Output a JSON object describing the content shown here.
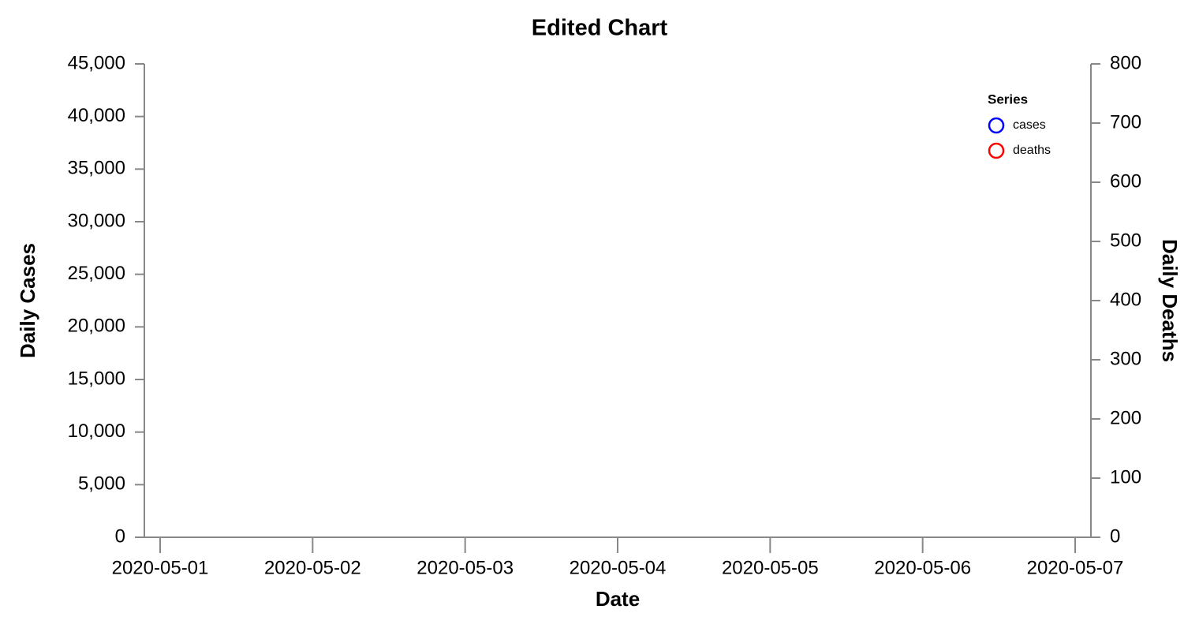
{
  "chart_data": {
    "type": "line",
    "title": "Edited Chart",
    "x": [
      "2020-05-01",
      "2020-05-02",
      "2020-05-03",
      "2020-05-04",
      "2020-05-05",
      "2020-05-06",
      "2020-05-07"
    ],
    "xlabel": "Date",
    "ylabel": "Daily Cases",
    "y2label": "Daily Deaths",
    "series": [
      {
        "name": "cases",
        "color": "blue",
        "values": [
          null,
          null,
          null,
          null,
          null,
          null,
          null
        ]
      },
      {
        "name": "deaths",
        "color": "red",
        "axis": "y2",
        "values": [
          null,
          null,
          null,
          null,
          null,
          null,
          null
        ]
      }
    ],
    "legend_title": "Series",
    "legend": "top-right",
    "ylim": [
      0,
      45000
    ],
    "yticks": [
      0,
      {
        "value": 5000,
        "label": "5,000"
      },
      {
        "value": 10000,
        "label": "10,000"
      },
      {
        "value": 15000,
        "label": "15,000"
      },
      {
        "value": 20000,
        "label": "20,000"
      },
      {
        "value": 25000,
        "label": "25,000"
      },
      {
        "value": 30000,
        "label": "30,000"
      },
      {
        "value": 35000,
        "label": "35,000"
      },
      {
        "value": 40000,
        "label": "40,000"
      },
      {
        "value": 45000,
        "label": "45,000"
      }
    ],
    "y2lim": [
      0,
      800
    ],
    "y2ticks": [
      0,
      100,
      200,
      300,
      400,
      500,
      600,
      700,
      800
    ]
  }
}
